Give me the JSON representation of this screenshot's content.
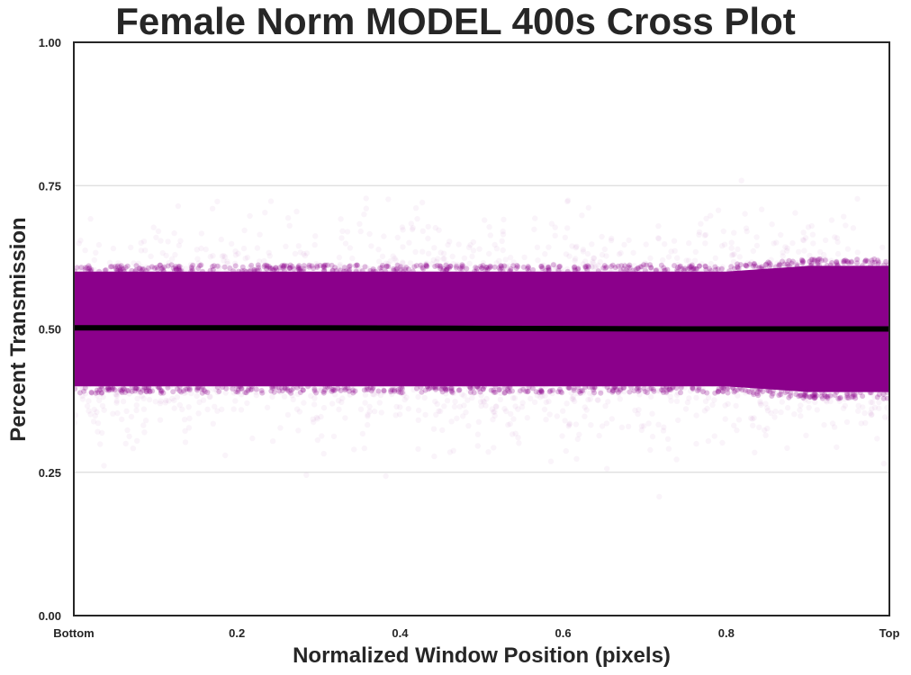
{
  "chart_data": {
    "type": "scatter",
    "title": "Female Norm MODEL 400s Cross Plot",
    "xlabel": "Normalized Window Position (pixels)",
    "ylabel": "Percent Transmission",
    "xlim": [
      0,
      1
    ],
    "ylim": [
      0,
      1
    ],
    "xticks": [
      {
        "value": 0,
        "label": "Bottom"
      },
      {
        "value": 0.2,
        "label": "0.2"
      },
      {
        "value": 0.4,
        "label": "0.4"
      },
      {
        "value": 0.6,
        "label": "0.6"
      },
      {
        "value": 0.8,
        "label": "0.8"
      },
      {
        "value": 1,
        "label": "Top"
      }
    ],
    "yticks": [
      {
        "value": 0,
        "label": "0.00"
      },
      {
        "value": 0.25,
        "label": "0.25"
      },
      {
        "value": 0.5,
        "label": "0.50"
      },
      {
        "value": 0.75,
        "label": "0.75"
      },
      {
        "value": 1,
        "label": "1.00"
      }
    ],
    "grid": "horizontal",
    "series": [
      {
        "kind": "band",
        "color": "#8b008b",
        "x": [
          0,
          0.1,
          0.2,
          0.3,
          0.4,
          0.5,
          0.6,
          0.7,
          0.8,
          0.9,
          1.0
        ],
        "dense_low": [
          0.4,
          0.4,
          0.4,
          0.4,
          0.4,
          0.4,
          0.4,
          0.4,
          0.4,
          0.39,
          0.39
        ],
        "dense_high": [
          0.6,
          0.6,
          0.6,
          0.6,
          0.6,
          0.6,
          0.6,
          0.6,
          0.6,
          0.61,
          0.61
        ],
        "scatter_low": [
          0.3,
          0.31,
          0.32,
          0.32,
          0.32,
          0.3,
          0.3,
          0.31,
          0.31,
          0.31,
          0.3
        ],
        "scatter_high": [
          0.68,
          0.68,
          0.69,
          0.68,
          0.7,
          0.69,
          0.68,
          0.68,
          0.71,
          0.69,
          0.68
        ]
      },
      {
        "kind": "mean_line",
        "color": "#000000",
        "x": [
          0,
          0.25,
          0.5,
          0.75,
          1.0
        ],
        "y": [
          0.502,
          0.502,
          0.501,
          0.5,
          0.5
        ]
      }
    ]
  }
}
